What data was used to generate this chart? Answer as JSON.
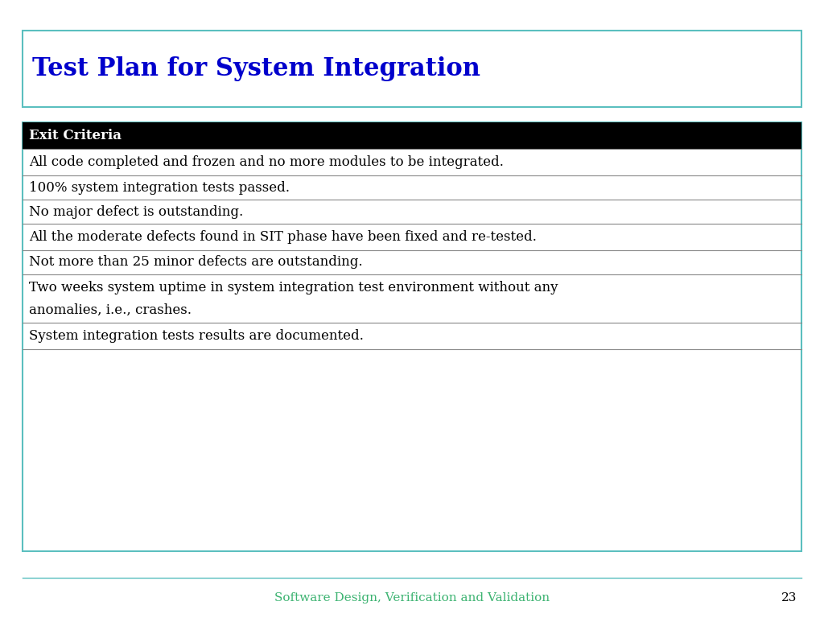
{
  "title": "Test Plan for System Integration",
  "title_color": "#0000CC",
  "title_fontsize": 22,
  "title_font": "serif",
  "header": "Exit Criteria",
  "header_bg": "#000000",
  "header_text_color": "#FFFFFF",
  "header_fontsize": 12,
  "rows": [
    "All code completed and frozen and no more modules to be integrated.",
    "100% system integration tests passed.",
    "No major defect is outstanding.",
    "All the moderate defects found in SIT phase have been fixed and re-tested.",
    "Not more than 25 minor defects are outstanding.",
    "Two weeks system uptime in system integration test environment without any\nanomalies, i.e., crashes.",
    "System integration tests results are documented."
  ],
  "row_fontsize": 12,
  "row_font": "serif",
  "footer_text": "Software Design, Verification and Validation",
  "footer_page": "23",
  "footer_color": "#3CB371",
  "footer_fontsize": 11,
  "bg_color": "#FFFFFF",
  "title_box_border_color": "#5BBFBF",
  "table_border_color": "#5BBFBF",
  "row_line_color": "#888888",
  "table_bg": "#FFFFFF"
}
